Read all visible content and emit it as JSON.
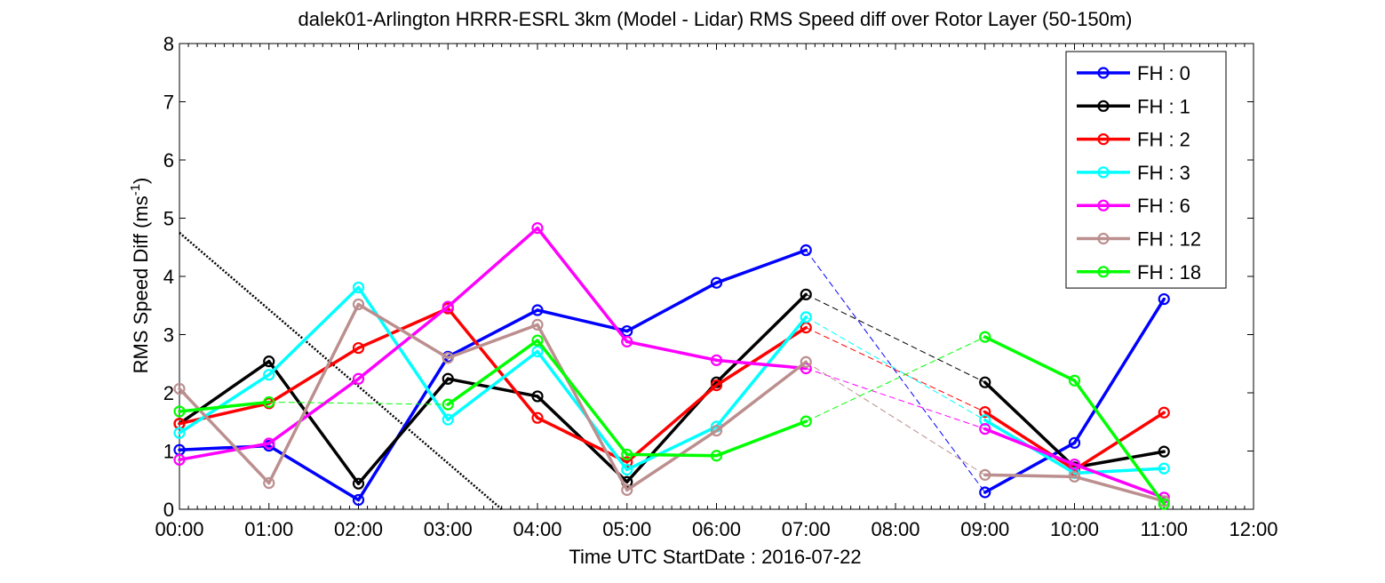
{
  "chart_data": {
    "type": "line",
    "title": "dalek01-Arlington HRRR-ESRL 3km (Model - Lidar) RMS Speed diff over Rotor Layer (50-150m)",
    "xlabel": "Time UTC    StartDate : 2016-07-22",
    "ylabel": {
      "prefix": "RMS Speed Diff (ms",
      "sup": "-1",
      "suffix": ")"
    },
    "x_ticks": [
      "00:00",
      "01:00",
      "02:00",
      "03:00",
      "04:00",
      "05:00",
      "06:00",
      "07:00",
      "08:00",
      "09:00",
      "10:00",
      "11:00",
      "12:00"
    ],
    "y_ticks": [
      "0",
      "1",
      "2",
      "3",
      "4",
      "5",
      "6",
      "7",
      "8"
    ],
    "xlim": [
      0,
      12
    ],
    "ylim": [
      0,
      8
    ],
    "grid": false,
    "legend_position": "top-right",
    "series": [
      {
        "name": "FH : 0",
        "color": "#0000ff",
        "x": [
          0,
          1,
          2,
          3,
          4,
          5,
          6,
          7,
          9,
          10,
          11
        ],
        "y": [
          1.02,
          1.09,
          0.16,
          2.62,
          3.42,
          3.06,
          3.89,
          4.45,
          0.29,
          1.14,
          3.61
        ]
      },
      {
        "name": "FH : 1",
        "color": "#000000",
        "x": [
          0,
          1,
          2,
          3,
          4,
          5,
          6,
          7,
          9,
          10,
          11
        ],
        "y": [
          1.47,
          2.54,
          0.44,
          2.24,
          1.94,
          0.47,
          2.18,
          3.69,
          2.18,
          0.72,
          0.99
        ]
      },
      {
        "name": "FH : 2",
        "color": "#ff0000",
        "x": [
          0,
          1,
          2,
          3,
          4,
          5,
          6,
          7,
          9,
          10,
          11
        ],
        "y": [
          1.47,
          1.82,
          2.77,
          3.45,
          1.57,
          0.81,
          2.13,
          3.12,
          1.67,
          0.68,
          1.66
        ]
      },
      {
        "name": "FH : 3",
        "color": "#00ffff",
        "x": [
          0,
          1,
          2,
          3,
          4,
          5,
          6,
          7,
          9,
          10,
          11
        ],
        "y": [
          1.31,
          2.31,
          3.81,
          1.54,
          2.71,
          0.68,
          1.42,
          3.3,
          1.53,
          0.62,
          0.7
        ]
      },
      {
        "name": "FH : 6",
        "color": "#ff00ff",
        "x": [
          0,
          1,
          2,
          3,
          4,
          5,
          6,
          7,
          9,
          10,
          11
        ],
        "y": [
          0.85,
          1.13,
          2.24,
          3.48,
          4.83,
          2.88,
          2.56,
          2.42,
          1.38,
          0.77,
          0.2
        ]
      },
      {
        "name": "FH : 12",
        "color": "#bc8f8f",
        "x": [
          0,
          1,
          2,
          3,
          4,
          5,
          6,
          7,
          9,
          10,
          11
        ],
        "y": [
          2.07,
          0.45,
          3.52,
          2.6,
          3.17,
          0.33,
          1.35,
          2.53,
          0.59,
          0.56,
          0.14
        ]
      },
      {
        "name": "FH : 18",
        "color": "#00ff00",
        "x": [
          0,
          1,
          3,
          4,
          5,
          6,
          7,
          9,
          10,
          11
        ],
        "y": [
          1.68,
          1.84,
          1.8,
          2.9,
          0.94,
          0.92,
          1.51,
          2.96,
          2.21,
          0.09
        ]
      }
    ],
    "trend_line": {
      "color": "#000000",
      "style": "dotted",
      "x": [
        0,
        3.6
      ],
      "y": [
        4.75,
        0
      ]
    }
  }
}
